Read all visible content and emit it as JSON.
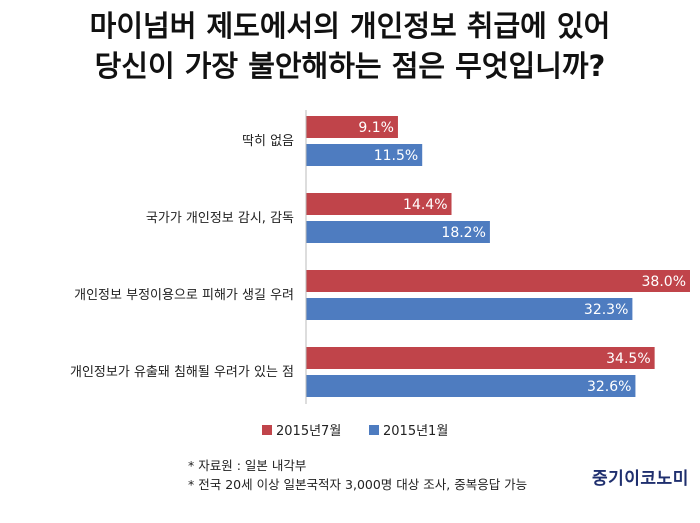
{
  "title": {
    "line1": "마이넘버 제도에서의 개인정보 취급에 있어",
    "line2": "당신이 가장 불안해하는 점은 무엇입니까?"
  },
  "chart_data": {
    "type": "bar",
    "orientation": "horizontal",
    "title": "마이넘버 제도에서의 개인정보 취급에 있어 당신이 가장 불안해하는 점은 무엇입니까?",
    "categories": [
      "딱히 없음",
      "국가가 개인정보 감시, 감독",
      "개인정보 부정이용으로 피해가 생길 우려",
      "개인정보가 유출돼 침해될 우려가 있는 점"
    ],
    "series": [
      {
        "name": "2015년7월",
        "values": [
          9.1,
          14.4,
          38.0,
          34.5
        ],
        "labels": [
          "9.1%",
          "14.4%",
          "38.0%",
          "34.5%"
        ],
        "color": "#c0444a"
      },
      {
        "name": "2015년1월",
        "values": [
          11.5,
          18.2,
          32.3,
          32.6
        ],
        "labels": [
          "11.5%",
          "18.2%",
          "32.3%",
          "32.6%"
        ],
        "color": "#4e7cc0"
      }
    ],
    "xlim": [
      0,
      38.0
    ],
    "legend": "bottom",
    "grid": false
  },
  "footnotes": {
    "source": "* 자료원 : 일본 내각부",
    "survey": "* 전국 20세 이상 일본국적자 3,000명 대상 조사, 중복응답 가능"
  },
  "brand": "중기이코노미"
}
